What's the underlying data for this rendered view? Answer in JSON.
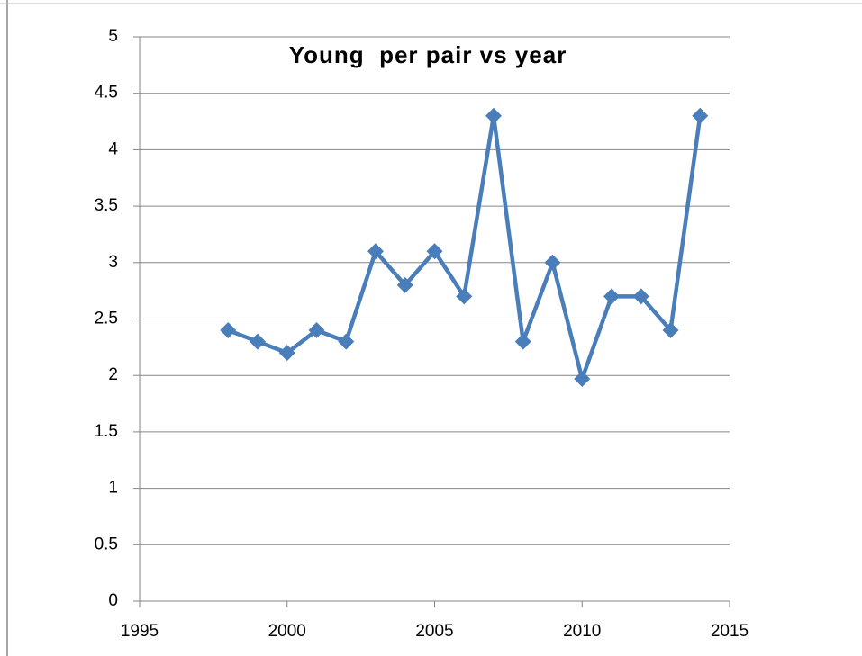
{
  "chart_data": {
    "type": "line",
    "title": "Young  per pair vs year",
    "x": [
      1998,
      1999,
      2000,
      2001,
      2002,
      2003,
      2004,
      2005,
      2006,
      2007,
      2008,
      2009,
      2010,
      2011,
      2012,
      2013,
      2014
    ],
    "series": [
      {
        "name": "Young per pair",
        "color": "#4a7ebb",
        "values": [
          2.4,
          2.3,
          2.2,
          2.4,
          2.3,
          3.1,
          2.8,
          3.1,
          2.7,
          4.3,
          2.3,
          3.0,
          1.97,
          2.7,
          2.7,
          2.4,
          4.3
        ]
      }
    ],
    "xlim": [
      1995,
      2015
    ],
    "xticks": [
      1995,
      2000,
      2005,
      2010,
      2015
    ],
    "ylim": [
      0,
      5
    ],
    "yticks": [
      0,
      0.5,
      1,
      1.5,
      2,
      2.5,
      3,
      3.5,
      4,
      4.5,
      5
    ],
    "grid": true,
    "marker": "diamond"
  }
}
